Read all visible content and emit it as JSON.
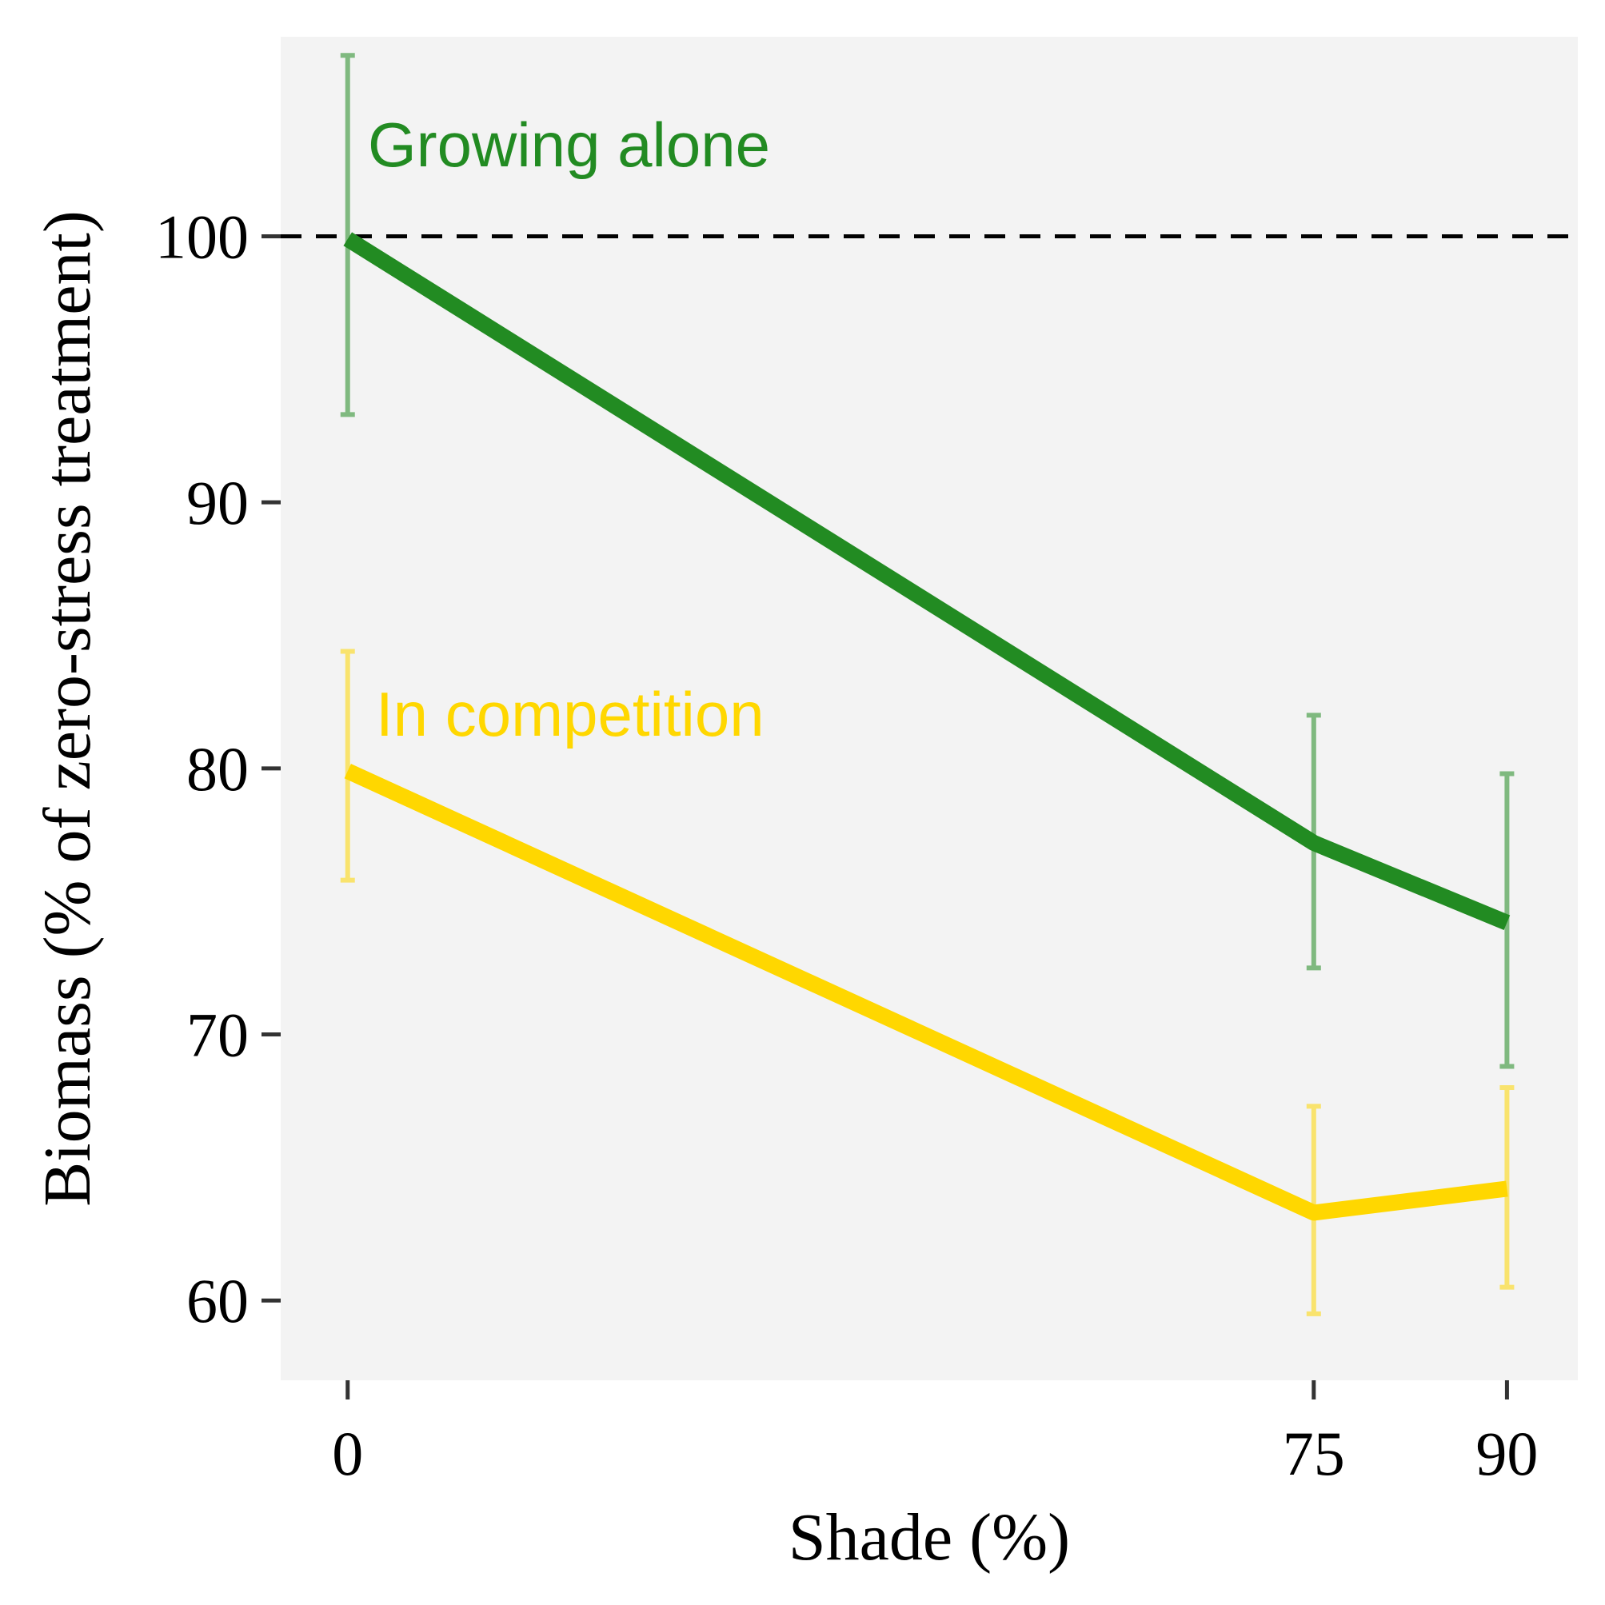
{
  "chart_data": {
    "type": "line",
    "xlabel": "Shade (%)",
    "ylabel": "Biomass (% of zero-stress treatment)",
    "x": [
      0,
      75,
      90
    ],
    "xticks": [
      "0",
      "75",
      "90"
    ],
    "yticks": [
      "60",
      "70",
      "80",
      "90",
      "100"
    ],
    "ylim": [
      57,
      107.5
    ],
    "xlim": [
      -5.2,
      95.5
    ],
    "grid": false,
    "panel_background": "#f3f3f3",
    "reference_line": {
      "y": 100,
      "style": "dashed",
      "color": "#000000"
    },
    "series": [
      {
        "name": "Growing alone",
        "color": "#228b22",
        "values": [
          99.9,
          77.2,
          74.2
        ],
        "error_low": [
          93.3,
          72.5,
          68.8
        ],
        "error_high": [
          106.8,
          82.0,
          79.8
        ]
      },
      {
        "name": "In competition",
        "color": "#ffd700",
        "values": [
          79.9,
          63.3,
          64.2
        ],
        "error_low": [
          75.8,
          59.5,
          60.5
        ],
        "error_high": [
          84.4,
          67.3,
          68.0
        ]
      }
    ]
  }
}
